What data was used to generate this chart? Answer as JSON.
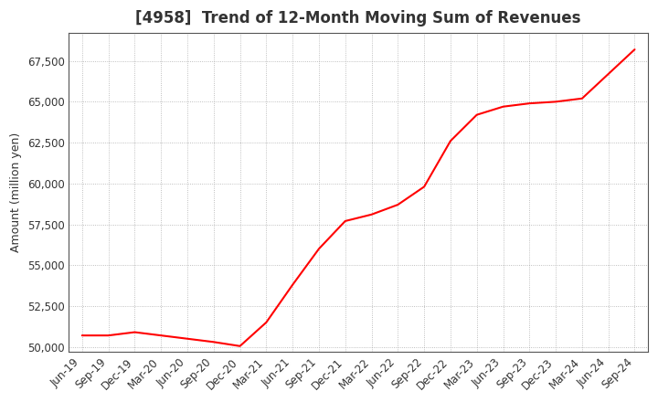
{
  "title": "[4958]  Trend of 12-Month Moving Sum of Revenues",
  "ylabel": "Amount (million yen)",
  "line_color": "#ff0000",
  "background_color": "#ffffff",
  "plot_bg_color": "#ffffff",
  "grid_color": "#999999",
  "title_color": "#333333",
  "x_labels": [
    "Jun-19",
    "Sep-19",
    "Dec-19",
    "Mar-20",
    "Jun-20",
    "Sep-20",
    "Dec-20",
    "Mar-21",
    "Jun-21",
    "Sep-21",
    "Dec-21",
    "Mar-22",
    "Jun-22",
    "Sep-22",
    "Dec-22",
    "Mar-23",
    "Jun-23",
    "Sep-23",
    "Dec-23",
    "Mar-24",
    "Jun-24",
    "Sep-24"
  ],
  "y_values": [
    50700,
    50700,
    50900,
    50700,
    50500,
    50300,
    50050,
    51500,
    53800,
    56000,
    57700,
    58100,
    58700,
    59800,
    62600,
    64200,
    64700,
    64900,
    65000,
    65200,
    66700,
    68200
  ],
  "ylim": [
    49700,
    69200
  ],
  "yticks": [
    50000,
    52500,
    55000,
    57500,
    60000,
    62500,
    65000,
    67500
  ],
  "title_fontsize": 12,
  "axis_fontsize": 9,
  "tick_fontsize": 8.5
}
